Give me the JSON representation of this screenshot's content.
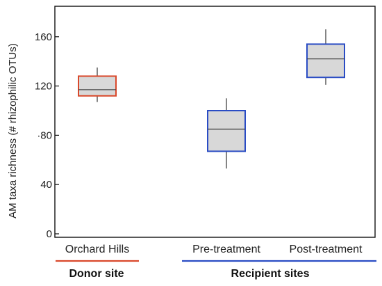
{
  "chart_data": {
    "type": "box",
    "ylabel": "AM taxa richness  (# rhizophilic  OTUs)",
    "ylim": [
      0,
      180
    ],
    "yticks": [
      0,
      40,
      80,
      120,
      160
    ],
    "ytick_labels": [
      "0",
      "40",
      "·80",
      "120",
      "160"
    ],
    "categories": [
      "Orchard Hills",
      "Pre-treatment",
      "Post-treatment"
    ],
    "boxes": [
      {
        "category": "Orchard Hills",
        "whisker_low": 107,
        "q1": 112,
        "median": 117,
        "q3": 128,
        "whisker_high": 135,
        "border_color": "#d9482b"
      },
      {
        "category": "Pre-treatment",
        "whisker_low": 53,
        "q1": 67,
        "median": 85,
        "q3": 100,
        "whisker_high": 110,
        "border_color": "#2a4cc4"
      },
      {
        "category": "Post-treatment",
        "whisker_low": 121,
        "q1": 127,
        "median": 142,
        "q3": 154,
        "whisker_high": 166,
        "border_color": "#2a4cc4"
      }
    ],
    "groups": [
      {
        "label": "Donor site",
        "underline_color": "#d9482b"
      },
      {
        "label": "Recipient sites",
        "underline_color": "#2a4cc4"
      }
    ],
    "box_fill": "#d8d8d8",
    "grid": false
  }
}
